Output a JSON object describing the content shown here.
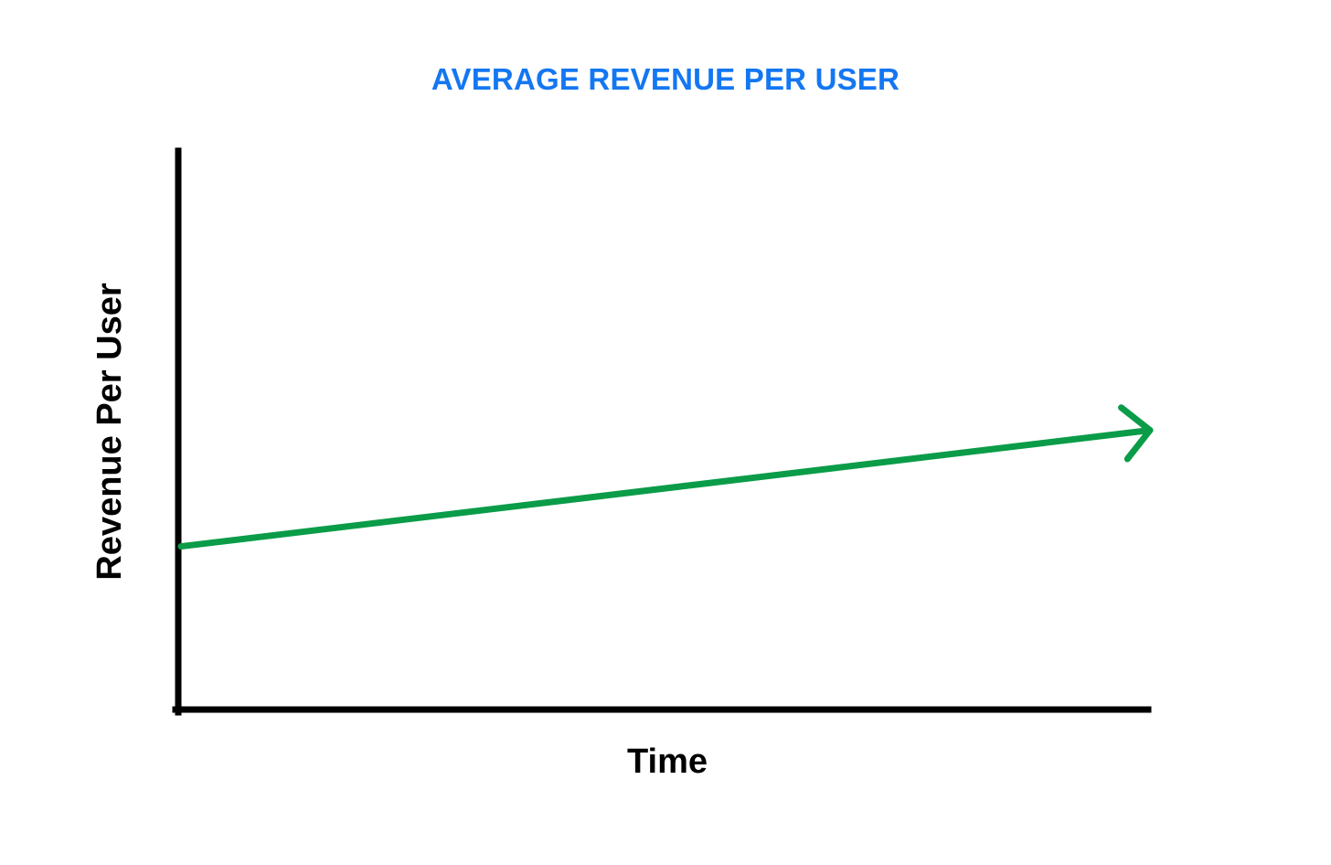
{
  "chart_data": {
    "type": "line",
    "title": "AVERAGE REVENUE PER USER",
    "xlabel": "Time",
    "ylabel": "Revenue Per User",
    "x": [
      0,
      1
    ],
    "series": [
      {
        "values": [
          0.29,
          0.5
        ]
      }
    ],
    "xlim": [
      0,
      1
    ],
    "ylim": [
      0,
      1
    ],
    "grid": false,
    "legend": "none",
    "line_end_marker": "arrow",
    "colors": {
      "title": "#1477f2",
      "series": "#0a9c48",
      "axes": "#000000"
    }
  }
}
